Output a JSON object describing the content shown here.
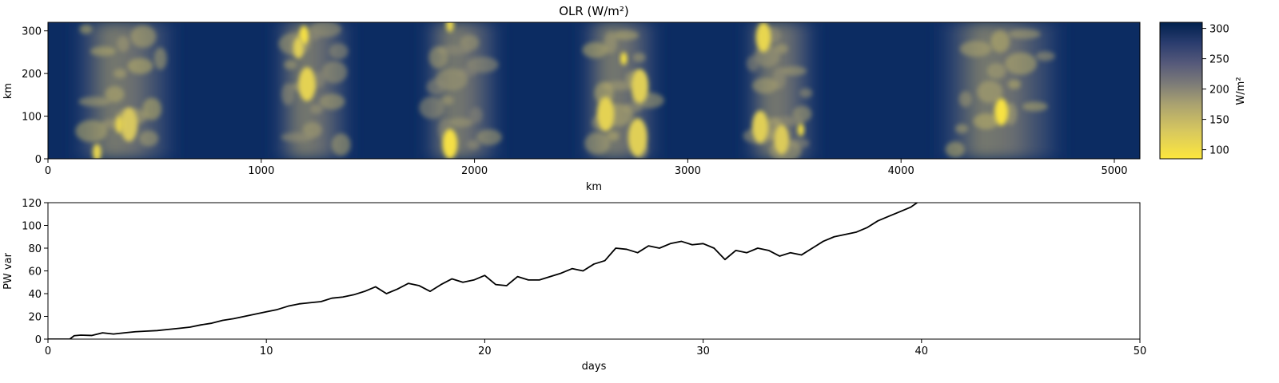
{
  "chart_data": [
    {
      "type": "heatmap",
      "title": "OLR (W/m²)",
      "xlabel": "km",
      "ylabel": "km",
      "xlim": [
        0,
        5120
      ],
      "ylim": [
        0,
        320
      ],
      "xticks": [
        0,
        1000,
        2000,
        3000,
        4000,
        5000
      ],
      "yticks": [
        0,
        100,
        200,
        300
      ],
      "colorbar": {
        "label": "W/m²",
        "range": [
          85,
          310
        ],
        "ticks": [
          100,
          150,
          200,
          250,
          300
        ],
        "colormap": "cividis",
        "low_color": "#fde73d",
        "mid_color": "#7c7b78",
        "high_color": "#00214e"
      },
      "convective_bands": [
        {
          "x_range": [
            100,
            620
          ],
          "mean_olr": 170
        },
        {
          "x_range": [
            1040,
            1440
          ],
          "mean_olr": 185
        },
        {
          "x_range": [
            1740,
            2140
          ],
          "mean_olr": 190
        },
        {
          "x_range": [
            2480,
            2880
          ],
          "mean_olr": 175
        },
        {
          "x_range": [
            3250,
            3620
          ],
          "mean_olr": 185
        },
        {
          "x_range": [
            4150,
            4780
          ],
          "mean_olr": 170
        }
      ],
      "clear_sky_olr": 300,
      "deep_convective_cores": [
        {
          "x": 1200,
          "y": 290,
          "r": 22,
          "olr": 95
        },
        {
          "x": 1175,
          "y": 260,
          "r": 25,
          "olr": 120
        },
        {
          "x": 1215,
          "y": 175,
          "r": 40,
          "olr": 115
        },
        {
          "x": 1885,
          "y": 35,
          "r": 35,
          "olr": 95
        },
        {
          "x": 1885,
          "y": 315,
          "r": 18,
          "olr": 110
        },
        {
          "x": 2700,
          "y": 235,
          "r": 15,
          "olr": 90
        },
        {
          "x": 2615,
          "y": 105,
          "r": 40,
          "olr": 115
        },
        {
          "x": 2765,
          "y": 50,
          "r": 45,
          "olr": 120
        },
        {
          "x": 2775,
          "y": 170,
          "r": 40,
          "olr": 120
        },
        {
          "x": 3355,
          "y": 285,
          "r": 35,
          "olr": 110
        },
        {
          "x": 3340,
          "y": 75,
          "r": 38,
          "olr": 120
        },
        {
          "x": 3440,
          "y": 45,
          "r": 35,
          "olr": 125
        },
        {
          "x": 3530,
          "y": 68,
          "r": 15,
          "olr": 95
        },
        {
          "x": 4470,
          "y": 110,
          "r": 32,
          "olr": 92
        },
        {
          "x": 380,
          "y": 80,
          "r": 40,
          "olr": 130
        },
        {
          "x": 335,
          "y": 80,
          "r": 20,
          "olr": 115
        },
        {
          "x": 230,
          "y": 15,
          "r": 20,
          "olr": 110
        }
      ]
    },
    {
      "type": "line",
      "xlabel": "days",
      "ylabel": "PW var",
      "xlim": [
        0,
        50
      ],
      "ylim": [
        0,
        120
      ],
      "xticks": [
        0,
        10,
        20,
        30,
        40,
        50
      ],
      "yticks": [
        0,
        20,
        40,
        60,
        80,
        100,
        120
      ],
      "line_color": "#000000",
      "series": [
        {
          "x": [
            0,
            1,
            1.2,
            1.5,
            2,
            2.5,
            3,
            3.5,
            4,
            4.5,
            5,
            5.5,
            6,
            6.5,
            7,
            7.5,
            8,
            8.5,
            9,
            9.5,
            10,
            10.5,
            11,
            11.5,
            12,
            12.5,
            13,
            13.5,
            14,
            14.5,
            15,
            15.5,
            16,
            16.5,
            17,
            17.5,
            18,
            18.5,
            19,
            19.5,
            20,
            20.5,
            21,
            21.5,
            22,
            22.5,
            23,
            23.5,
            24,
            24.5,
            25,
            25.5,
            26,
            26.5,
            27,
            27.5,
            28,
            28.5,
            29,
            29.5,
            30,
            30.5,
            31,
            31.5,
            32,
            32.5,
            33,
            33.5,
            34,
            34.5,
            35,
            35.5,
            36,
            36.5,
            37,
            37.5,
            38,
            38.5,
            39,
            39.5,
            39.8
          ],
          "y": [
            0,
            0,
            3,
            3.5,
            3.2,
            5.5,
            4.5,
            5.5,
            6.5,
            7,
            7.5,
            8.5,
            9.5,
            10.5,
            12.5,
            14,
            16.5,
            18,
            20,
            22,
            24,
            26,
            29,
            31,
            32,
            33,
            36,
            37,
            39,
            42,
            46,
            40,
            44,
            49,
            47,
            42,
            48,
            53,
            50,
            52,
            56,
            48,
            47,
            55,
            52,
            52,
            55,
            58,
            62,
            60,
            66,
            69,
            80,
            79,
            76,
            82,
            80,
            84,
            86,
            83,
            84,
            80,
            70,
            78,
            76,
            80,
            78,
            73,
            76,
            74,
            80,
            86,
            90,
            92,
            94,
            98,
            104,
            108,
            112,
            116,
            120
          ]
        }
      ]
    }
  ]
}
